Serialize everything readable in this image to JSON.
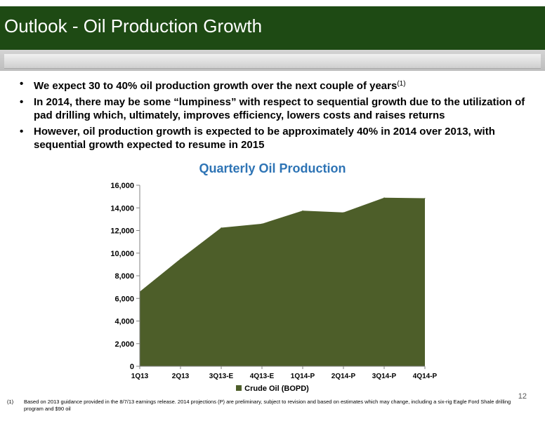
{
  "slide": {
    "title": "Outlook - Oil Production Growth",
    "page_number": "12"
  },
  "bullets": [
    {
      "text": "We expect 30 to 40% oil production growth over the next couple of years",
      "sup": "(1)"
    },
    {
      "text": "In 2014, there may be some “lumpiness” with respect to sequential growth due to the utilization of pad drilling which, ultimately, improves efficiency, lowers costs and raises returns",
      "sup": ""
    },
    {
      "text": "However, oil production growth is expected to be approximately 40% in 2014 over 2013, with sequential growth expected to resume in 2015",
      "sup": ""
    }
  ],
  "bullet_char": "•",
  "footnote": {
    "mark": "(1)",
    "text": "Based on 2013 guidance provided in the 8/7/13 earnings release.  2014 projections (P) are preliminary, subject to revision and based on estimates which may change, including a six-rig Eagle Ford Shale drilling program and $90 oil"
  },
  "chart_data": {
    "type": "area",
    "title": "Quarterly Oil Production",
    "categories": [
      "1Q13",
      "2Q13",
      "3Q13-E",
      "4Q13-E",
      "1Q14-P",
      "2Q14-P",
      "3Q14-P",
      "4Q14-P"
    ],
    "series": [
      {
        "name": "Crude Oil (BOPD)",
        "values": [
          6600,
          9500,
          12250,
          12600,
          13750,
          13600,
          14900,
          14850
        ],
        "color": "#4d5e29"
      }
    ],
    "ylim": [
      0,
      16000
    ],
    "yticks": [
      0,
      2000,
      4000,
      6000,
      8000,
      10000,
      12000,
      14000,
      16000
    ],
    "ytick_labels": [
      "0",
      "2,000",
      "4,000",
      "6,000",
      "8,000",
      "10,000",
      "12,000",
      "14,000",
      "16,000"
    ],
    "legend_position": "bottom",
    "grid": false,
    "title_color": "#2e74b5"
  }
}
